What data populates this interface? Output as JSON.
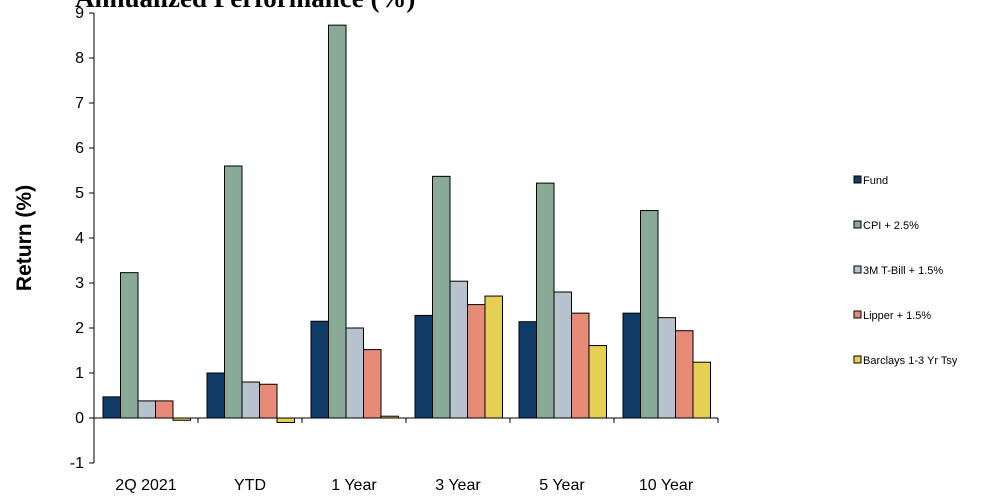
{
  "chart_data": {
    "type": "bar",
    "title": "Annualized Performance (%)",
    "xlabel": "",
    "ylabel": "Return (%)",
    "ylim": [
      -1,
      9
    ],
    "yticks": [
      "-1",
      "0",
      "1",
      "2",
      "3",
      "4",
      "5",
      "6",
      "7",
      "8",
      "9"
    ],
    "categories": [
      "2Q 2021",
      "YTD",
      "1 Year",
      "3 Year",
      "5 Year",
      "10 Year"
    ],
    "legend_position": "right",
    "series": [
      {
        "name": "Fund",
        "color": "#0f3b66",
        "values": [
          0.47,
          1.0,
          2.15,
          2.28,
          2.14,
          2.33
        ]
      },
      {
        "name": "CPI + 2.5%",
        "color": "#88aa96",
        "values": [
          3.23,
          5.6,
          8.73,
          5.37,
          5.22,
          4.61
        ]
      },
      {
        "name": "3M T-Bill + 1.5%",
        "color": "#b7c2cf",
        "values": [
          0.38,
          0.8,
          2.0,
          3.04,
          2.8,
          2.23
        ]
      },
      {
        "name": "Lipper + 1.5%",
        "color": "#e88a78",
        "values": [
          0.38,
          0.75,
          1.52,
          2.52,
          2.33,
          1.94
        ]
      },
      {
        "name": "Barclays 1-3 Yr Tsy",
        "color": "#e6cf55",
        "values": [
          -0.05,
          -0.1,
          0.04,
          2.71,
          1.61,
          1.24
        ]
      }
    ]
  }
}
